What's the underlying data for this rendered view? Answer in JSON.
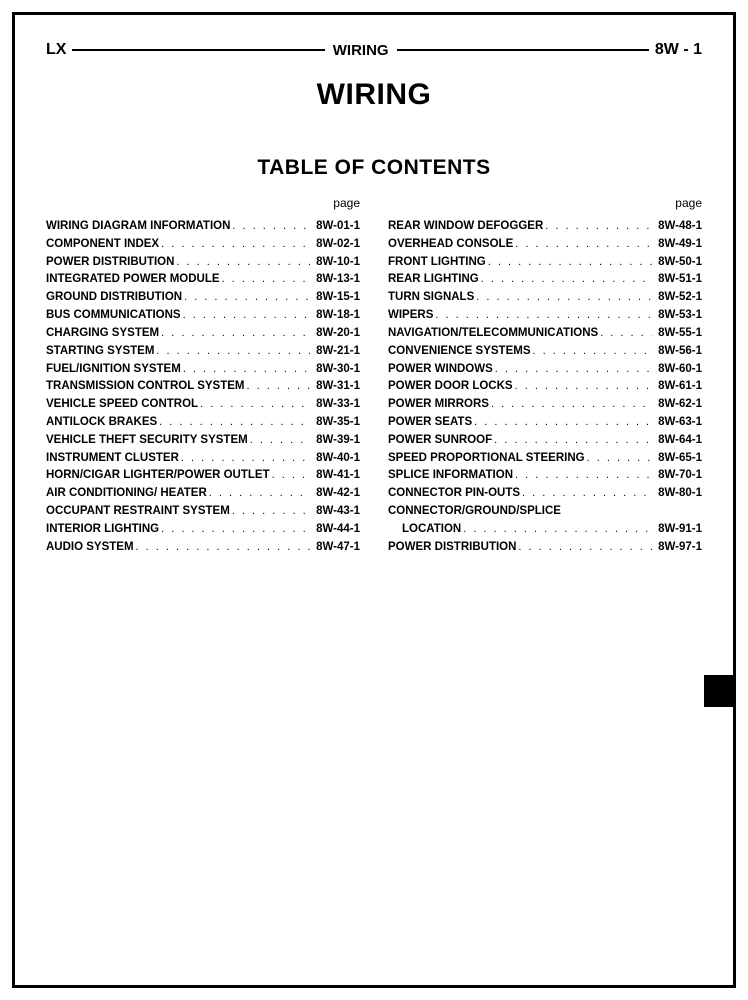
{
  "header": {
    "left": "LX",
    "center": "WIRING",
    "right": "8W - 1"
  },
  "title": "WIRING",
  "toc_title": "TABLE OF CONTENTS",
  "page_label": "page",
  "columns": [
    [
      {
        "label": "WIRING DIAGRAM INFORMATION",
        "page": "8W-01-1"
      },
      {
        "label": "COMPONENT INDEX",
        "page": "8W-02-1"
      },
      {
        "label": "POWER DISTRIBUTION",
        "page": "8W-10-1"
      },
      {
        "label": "INTEGRATED POWER MODULE",
        "page": "8W-13-1"
      },
      {
        "label": "GROUND DISTRIBUTION",
        "page": "8W-15-1"
      },
      {
        "label": "BUS COMMUNICATIONS",
        "page": "8W-18-1"
      },
      {
        "label": "CHARGING SYSTEM",
        "page": "8W-20-1"
      },
      {
        "label": "STARTING SYSTEM",
        "page": "8W-21-1"
      },
      {
        "label": "FUEL/IGNITION SYSTEM",
        "page": "8W-30-1"
      },
      {
        "label": "TRANSMISSION CONTROL SYSTEM",
        "page": "8W-31-1"
      },
      {
        "label": "VEHICLE SPEED CONTROL",
        "page": "8W-33-1"
      },
      {
        "label": "ANTILOCK BRAKES",
        "page": "8W-35-1"
      },
      {
        "label": "VEHICLE THEFT SECURITY SYSTEM",
        "page": "8W-39-1"
      },
      {
        "label": "INSTRUMENT CLUSTER",
        "page": "8W-40-1"
      },
      {
        "label": "HORN/CIGAR LIGHTER/POWER OUTLET",
        "page": "8W-41-1"
      },
      {
        "label": "AIR CONDITIONING/ HEATER",
        "page": "8W-42-1"
      },
      {
        "label": "OCCUPANT RESTRAINT SYSTEM",
        "page": "8W-43-1"
      },
      {
        "label": "INTERIOR LIGHTING",
        "page": "8W-44-1"
      },
      {
        "label": "AUDIO SYSTEM",
        "page": "8W-47-1"
      }
    ],
    [
      {
        "label": "REAR WINDOW DEFOGGER",
        "page": "8W-48-1"
      },
      {
        "label": "OVERHEAD CONSOLE",
        "page": "8W-49-1"
      },
      {
        "label": "FRONT LIGHTING",
        "page": "8W-50-1"
      },
      {
        "label": "REAR LIGHTING",
        "page": "8W-51-1"
      },
      {
        "label": "TURN SIGNALS",
        "page": "8W-52-1"
      },
      {
        "label": "WIPERS",
        "page": "8W-53-1"
      },
      {
        "label": "NAVIGATION/TELECOMMUNICATIONS",
        "page": "8W-55-1"
      },
      {
        "label": "CONVENIENCE SYSTEMS",
        "page": "8W-56-1"
      },
      {
        "label": "POWER WINDOWS",
        "page": "8W-60-1"
      },
      {
        "label": "POWER DOOR LOCKS",
        "page": "8W-61-1"
      },
      {
        "label": "POWER MIRRORS",
        "page": "8W-62-1"
      },
      {
        "label": "POWER SEATS",
        "page": "8W-63-1"
      },
      {
        "label": "POWER SUNROOF",
        "page": "8W-64-1"
      },
      {
        "label": "SPEED PROPORTIONAL STEERING",
        "page": "8W-65-1"
      },
      {
        "label": "SPLICE INFORMATION",
        "page": "8W-70-1"
      },
      {
        "label": "CONNECTOR PIN-OUTS",
        "page": "8W-80-1"
      },
      {
        "label": "CONNECTOR/GROUND/SPLICE",
        "page": ""
      },
      {
        "label": "LOCATION",
        "page": "8W-91-1",
        "indent": true
      },
      {
        "label": "POWER DISTRIBUTION",
        "page": "8W-97-1"
      }
    ]
  ]
}
